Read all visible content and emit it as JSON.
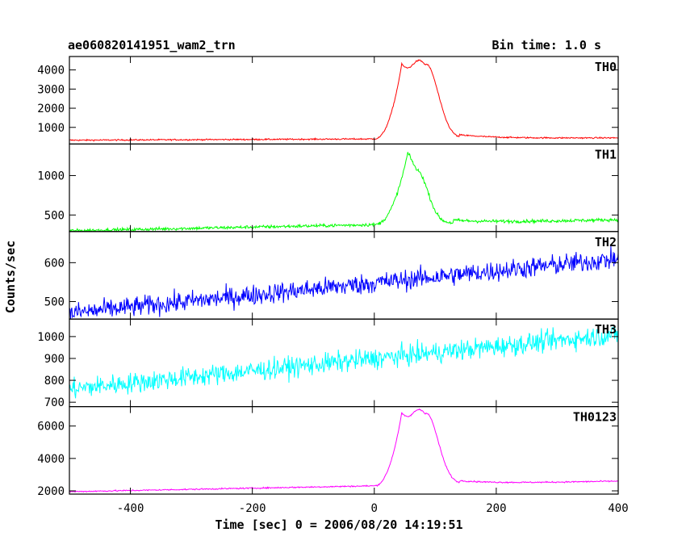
{
  "header": {
    "title": "ae060820141951_wam2_trn",
    "bin_time": "Bin time: 1.0 s"
  },
  "axes": {
    "xlabel": "Time [sec] 0 = 2006/08/20 14:19:51",
    "ylabel": "Counts/sec"
  },
  "chart_data": {
    "type": "line",
    "title": "ae060820141951_wam2_trn",
    "subtitle": "Bin time: 1.0 s",
    "xlabel": "Time [sec] 0 = 2006/08/20 14:19:51",
    "ylabel": "Counts/sec",
    "xlim": [
      -500,
      400
    ],
    "xticks": [
      -400,
      -200,
      0,
      200,
      400
    ],
    "x_range": [
      -500,
      400
    ],
    "panels": [
      {
        "name": "TH0",
        "color": "#ff0000",
        "ylim": [
          130,
          4700
        ],
        "yticks": [
          1000,
          2000,
          3000,
          4000
        ],
        "base_start": 330,
        "base_end": 450,
        "peak": 4300,
        "noise": 35,
        "peak_profile": "flat-top"
      },
      {
        "name": "TH1",
        "color": "#00ff00",
        "ylim": [
          290,
          1400
        ],
        "yticks": [
          500,
          1000
        ],
        "base_start": 300,
        "base_end": 440,
        "peak": 1290,
        "noise": 20,
        "peak_profile": "spike"
      },
      {
        "name": "TH2",
        "color": "#0000ff",
        "ylim": [
          455,
          680
        ],
        "yticks": [
          500,
          600
        ],
        "base_start": 470,
        "base_end": 610,
        "peak": 0,
        "noise": 25,
        "peak_profile": "none"
      },
      {
        "name": "TH3",
        "color": "#00ffff",
        "ylim": [
          680,
          1080
        ],
        "yticks": [
          700,
          800,
          900,
          1000
        ],
        "base_start": 760,
        "base_end": 1010,
        "peak": 0,
        "noise": 45,
        "peak_profile": "none"
      },
      {
        "name": "TH0123",
        "color": "#ff00ff",
        "ylim": [
          1800,
          7200
        ],
        "yticks": [
          2000,
          4000,
          6000
        ],
        "base_start": 1950,
        "base_end": 2600,
        "peak": 6800,
        "noise": 40,
        "peak_profile": "flat-top"
      }
    ]
  }
}
